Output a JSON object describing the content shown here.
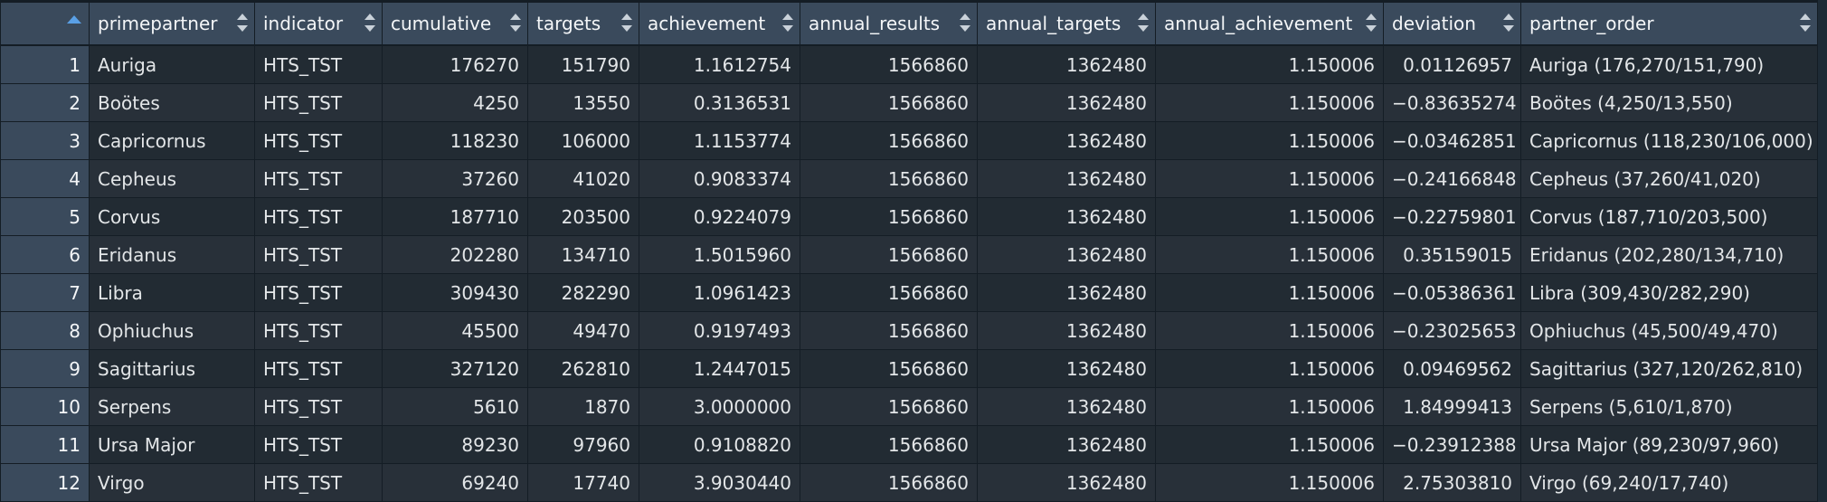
{
  "table": {
    "columns": [
      {
        "key": "primepartner",
        "label": "primepartner"
      },
      {
        "key": "indicator",
        "label": "indicator"
      },
      {
        "key": "cumulative",
        "label": "cumulative"
      },
      {
        "key": "targets",
        "label": "targets"
      },
      {
        "key": "achievement",
        "label": "achievement"
      },
      {
        "key": "annual_results",
        "label": "annual_results"
      },
      {
        "key": "annual_targets",
        "label": "annual_targets"
      },
      {
        "key": "annual_achievement",
        "label": "annual_achievement"
      },
      {
        "key": "deviation",
        "label": "deviation"
      },
      {
        "key": "partner_order",
        "label": "partner_order"
      }
    ],
    "sort": {
      "column": "row_number",
      "direction": "ascending"
    },
    "rows": [
      {
        "n": "1",
        "cells": [
          "Auriga",
          "HTS_TST",
          "176270",
          "151790",
          "1.1612754",
          "1566860",
          "1362480",
          "1.150006",
          "0.01126957",
          "Auriga (176,270/151,790)"
        ]
      },
      {
        "n": "2",
        "cells": [
          "Boötes",
          "HTS_TST",
          "4250",
          "13550",
          "0.3136531",
          "1566860",
          "1362480",
          "1.150006",
          "−0.83635274",
          "Boötes (4,250/13,550)"
        ]
      },
      {
        "n": "3",
        "cells": [
          "Capricornus",
          "HTS_TST",
          "118230",
          "106000",
          "1.1153774",
          "1566860",
          "1362480",
          "1.150006",
          "−0.03462851",
          "Capricornus (118,230/106,000)"
        ]
      },
      {
        "n": "4",
        "cells": [
          "Cepheus",
          "HTS_TST",
          "37260",
          "41020",
          "0.9083374",
          "1566860",
          "1362480",
          "1.150006",
          "−0.24166848",
          "Cepheus (37,260/41,020)"
        ]
      },
      {
        "n": "5",
        "cells": [
          "Corvus",
          "HTS_TST",
          "187710",
          "203500",
          "0.9224079",
          "1566860",
          "1362480",
          "1.150006",
          "−0.22759801",
          "Corvus (187,710/203,500)"
        ]
      },
      {
        "n": "6",
        "cells": [
          "Eridanus",
          "HTS_TST",
          "202280",
          "134710",
          "1.5015960",
          "1566860",
          "1362480",
          "1.150006",
          "0.35159015",
          "Eridanus (202,280/134,710)"
        ]
      },
      {
        "n": "7",
        "cells": [
          "Libra",
          "HTS_TST",
          "309430",
          "282290",
          "1.0961423",
          "1566860",
          "1362480",
          "1.150006",
          "−0.05386361",
          "Libra (309,430/282,290)"
        ]
      },
      {
        "n": "8",
        "cells": [
          "Ophiuchus",
          "HTS_TST",
          "45500",
          "49470",
          "0.9197493",
          "1566860",
          "1362480",
          "1.150006",
          "−0.23025653",
          "Ophiuchus (45,500/49,470)"
        ]
      },
      {
        "n": "9",
        "cells": [
          "Sagittarius",
          "HTS_TST",
          "327120",
          "262810",
          "1.2447015",
          "1566860",
          "1362480",
          "1.150006",
          "0.09469562",
          "Sagittarius (327,120/262,810)"
        ]
      },
      {
        "n": "10",
        "cells": [
          "Serpens",
          "HTS_TST",
          "5610",
          "1870",
          "3.0000000",
          "1566860",
          "1362480",
          "1.150006",
          "1.84999413",
          "Serpens (5,610/1,870)"
        ]
      },
      {
        "n": "11",
        "cells": [
          "Ursa Major",
          "HTS_TST",
          "89230",
          "97960",
          "0.9108820",
          "1566860",
          "1362480",
          "1.150006",
          "−0.23912388",
          "Ursa Major (89,230/97,960)"
        ]
      },
      {
        "n": "12",
        "cells": [
          "Virgo",
          "HTS_TST",
          "69240",
          "17740",
          "3.9030440",
          "1566860",
          "1362480",
          "1.150006",
          "2.75303810",
          "Virgo (69,240/17,740)"
        ]
      }
    ]
  },
  "colors": {
    "background": "#1e2b36",
    "header": "#3a4a5c",
    "row_odd": "#222b33",
    "row_even": "#283039",
    "sort_indicator": "#5aa0e6",
    "text": "#e3e6e8"
  },
  "icons": {
    "row_number_header": "sort-ascending-icon",
    "column_header": "sort-both-icon"
  }
}
